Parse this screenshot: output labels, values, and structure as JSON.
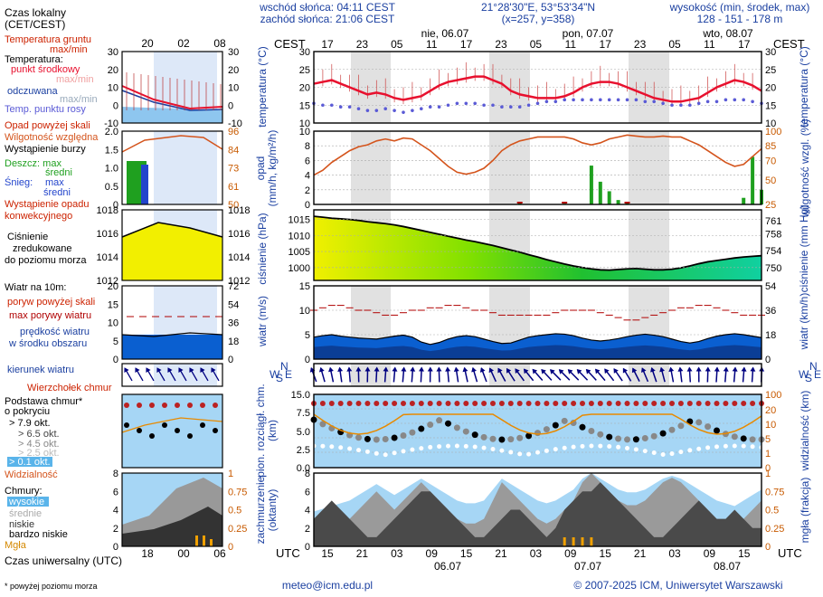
{
  "header": {
    "sunrise": "wschód słońca: 04:11 CEST",
    "sunset": "zachód słońca: 21:06 CEST",
    "coords": "21°28'30\"E, 53°53'34\"N",
    "grid": "(x=257, y=358)",
    "elev_title": "wysokość (min, środek, max)",
    "elev_values": "128 - 151 - 178 m"
  },
  "footer": {
    "email": "meteo@icm.edu.pl",
    "copyright": "© 2007-2025 ICM, Uniwersytet Warszawski",
    "note": "* powyżej poziomu morza"
  },
  "legend": {
    "local_time": [
      "Czas lokalny",
      "(CET/CEST)"
    ],
    "soil_temp": [
      "Temperatura gruntu",
      "max/min"
    ],
    "temp_title": "Temperatura:",
    "temp_mid": "punkt środkowy",
    "temp_mid_minmax": "max/min",
    "temp_felt": "odczuwana",
    "temp_felt_minmax": "max/min",
    "temp_dew": "Temp. punktu rosy",
    "precip_above": "Opad powyżej skali",
    "humidity": "Wilgotność względna",
    "storm": "Wystąpienie burzy",
    "rain_max": "Deszcz: max",
    "rain_mean": "średni",
    "snow_label": "Śnieg:",
    "snow_max": "max",
    "snow_mean": "średni",
    "precip_occ": [
      "Wystąpienie opadu",
      "konwekcyjnego"
    ],
    "pressure": [
      "Ciśnienie",
      "zredukowane",
      "do poziomu morza"
    ],
    "wind_title": "Wiatr na 10m:",
    "gust_above": "poryw powyżej skali",
    "gust_max": "max porywy wiatru",
    "wind_mean": [
      "prędkość wiatru",
      "w środku obszaru"
    ],
    "wind_dir": "kierunek wiatru",
    "cloud_top": "Wierzchołek chmur",
    "cloud_base": [
      "Podstawa chmur*",
      "o pokryciu"
    ],
    "cov": [
      "> 7.9 okt.",
      "> 6.5 okt.",
      "> 4.5 okt.",
      "> 2.5 okt.",
      "> 0.1 okt."
    ],
    "visibility": "Widzialność",
    "clouds_title": "Chmury:",
    "cl_high": "wysokie",
    "cl_mid": "średnie",
    "cl_low": "niskie",
    "cl_vlow": "bardzo niskie",
    "fog": "Mgła",
    "utc_time": "Czas uniwersalny (UTC)"
  },
  "axes": {
    "cest": "CEST",
    "utc": "UTC",
    "local_ticks": [
      "17",
      "23",
      "05",
      "11",
      "17",
      "23",
      "05",
      "11",
      "17",
      "23",
      "05",
      "11",
      "17"
    ],
    "utc_ticks": [
      "15",
      "21",
      "03",
      "09",
      "15",
      "21",
      "03",
      "09",
      "15",
      "21",
      "03",
      "09",
      "15"
    ],
    "day_labels": [
      "nie, 06.07",
      "pon, 07.07",
      "wto, 08.07"
    ],
    "utc_days": [
      "06.07",
      "07.07",
      "08.07"
    ],
    "legend_local_ticks": [
      "20",
      "02",
      "08"
    ],
    "legend_utc_ticks": [
      "18",
      "00",
      "06"
    ],
    "y_titles": {
      "temp": "temperatura (°C)",
      "precip": [
        "opad",
        "(mm/h, kg/m²/h)"
      ],
      "humidity": "wilgotność wzgl. (%)",
      "pressure": "ciśnienie (hPa)",
      "pressure_r": "ciśnienie (mm Hg)",
      "wind": "wiatr (m/s)",
      "wind_r": "wiatr (km/h)",
      "cloudbase": [
        "pion. rozciągł. chm.",
        "(km)"
      ],
      "vis": "widzialność (km)",
      "cloudcov": [
        "zachmurzenie",
        "(oktanty)"
      ],
      "fog": "mgła (frakcja)"
    },
    "temp_ticks": [
      "10",
      "15",
      "20",
      "25",
      "30"
    ],
    "temp_ticks_left": [
      "-10",
      "-5",
      "0",
      "5",
      "10",
      "15",
      "20",
      "25",
      "30"
    ],
    "precip_ticks": [
      "0",
      "2",
      "4",
      "6",
      "8",
      "10"
    ],
    "precip_ticks_left": [
      "0",
      "0.5",
      "1.0",
      "1.5",
      "2.0"
    ],
    "hum_ticks": [
      "25",
      "50",
      "70",
      "85",
      "96",
      "100"
    ],
    "hum_ticks_legend": [
      "50",
      "61",
      "73",
      "84",
      "96"
    ],
    "pres_ticks": [
      "1000",
      "1005",
      "1010",
      "1015"
    ],
    "pres_ticks_r": [
      "750",
      "754",
      "758",
      "761"
    ],
    "pres_ticks_legend": [
      "1012",
      "1014",
      "1016",
      "1018"
    ],
    "wind_ticks": [
      "0",
      "5",
      "10",
      "15"
    ],
    "wind_ticks_r": [
      "0",
      "18",
      "36",
      "54"
    ],
    "wind_ticks_legend": [
      "0",
      "5",
      "10",
      "15",
      "20"
    ],
    "wind_ticks_legend_r": [
      "0",
      "18",
      "36",
      "54",
      "72"
    ],
    "cb_ticks": [
      "0.0",
      "2.5",
      "5.0",
      "7.5",
      "15.0"
    ],
    "vis_ticks": [
      "0",
      "1",
      "5",
      "10",
      "20",
      "100"
    ],
    "cc_ticks": [
      "0",
      "2",
      "4",
      "6",
      "8"
    ],
    "fog_ticks": [
      "0",
      "0.25",
      "0.5",
      "0.75",
      "1"
    ],
    "wn_letters": [
      "N",
      "W",
      "E",
      "S"
    ]
  },
  "colors": {
    "temp": "#e8102e",
    "dew": "#5b5bd6",
    "humidity": "#d4541c",
    "rain": "#1fa01f",
    "snow": "#2244cc",
    "wind_mean": "#1f55d4",
    "gust": "#b00000",
    "night": "#c9c9c9",
    "plot_bg": "#ffffff",
    "cloudsky": "#a6d6f5",
    "cloud_text": "#000080"
  },
  "chart_data": [
    {
      "type": "line",
      "title": "temperatura",
      "ylim": [
        10,
        30
      ],
      "x_hours_utc_from": 13,
      "series": [
        {
          "name": "temperatura (punkt środkowy)",
          "values": [
            21,
            21.5,
            22,
            21,
            20,
            19,
            18,
            18.5,
            18,
            17,
            16.5,
            17,
            17.5,
            19,
            20.5,
            21.5,
            22,
            22.5,
            23,
            23,
            22,
            21,
            19,
            18,
            17.5,
            17,
            17,
            17,
            17.5,
            18.5,
            20,
            21,
            21.5,
            21.5,
            21,
            20,
            19,
            18,
            17,
            16.5,
            16,
            16,
            16.5,
            17,
            18.5,
            20,
            21,
            22,
            21.5,
            20.5,
            19
          ]
        },
        {
          "name": "temp. punktu rosy",
          "values": [
            15.5,
            15,
            15,
            14.5,
            14.5,
            14,
            13.5,
            13.5,
            14,
            13.5,
            13,
            13.5,
            14,
            14.5,
            14.5,
            15,
            15.5,
            15.5,
            15.5,
            15,
            15,
            14.5,
            14.5,
            14.5,
            15,
            15.5,
            16,
            16,
            16.5,
            16.5,
            16.5,
            16.5,
            16.5,
            16.5,
            16.5,
            16.5,
            16.5,
            16,
            16,
            15.5,
            15,
            15,
            15,
            15.5,
            16,
            16,
            16.5,
            16.5,
            16.5,
            16,
            15.5
          ]
        }
      ]
    },
    {
      "type": "line",
      "title": "wilgotność względna (%)",
      "ylim": [
        25,
        100
      ],
      "series": [
        {
          "name": "wilgotność",
          "values": [
            55,
            60,
            68,
            74,
            80,
            84,
            86,
            90,
            92,
            90,
            93,
            92,
            86,
            80,
            72,
            64,
            58,
            56,
            58,
            62,
            70,
            80,
            86,
            90,
            92,
            94,
            94,
            94,
            94,
            92,
            88,
            86,
            88,
            92,
            94,
            96,
            95,
            94,
            94,
            95,
            94,
            94,
            90,
            86,
            80,
            74,
            68,
            64,
            66,
            74,
            82
          ]
        }
      ]
    },
    {
      "type": "bar",
      "title": "opad (mm/h)",
      "ylim": [
        0,
        10
      ],
      "series": [
        {
          "name": "deszcz max",
          "values": [
            0,
            0,
            0,
            0,
            0,
            0,
            0,
            0,
            0,
            0,
            0,
            0,
            0,
            0,
            0,
            0,
            0,
            0,
            0,
            0,
            0,
            0,
            0,
            0.3,
            0,
            0,
            0,
            0,
            0.1,
            0,
            0,
            5.3,
            3.1,
            1.8,
            0.6,
            0.3,
            0,
            0,
            0,
            0,
            0,
            0,
            0,
            0,
            0,
            0,
            0,
            0,
            0.9,
            6.5,
            2.0
          ]
        }
      ]
    },
    {
      "type": "area",
      "title": "ciśnienie (hPa)",
      "ylim": [
        996,
        1018
      ],
      "series": [
        {
          "name": "ciśnienie",
          "values": [
            1016,
            1015.7,
            1015.4,
            1015.2,
            1015,
            1014.7,
            1014.3,
            1014,
            1013.7,
            1013.3,
            1012.8,
            1012.2,
            1011.6,
            1011,
            1010.4,
            1009.8,
            1009.2,
            1008.6,
            1008.1,
            1007.5,
            1006.9,
            1006.2,
            1005.5,
            1004.8,
            1004,
            1003.3,
            1002.5,
            1001.8,
            1001.1,
            1000.5,
            1000,
            999.6,
            999.3,
            999.2,
            999.4,
            999.6,
            999.7,
            999.5,
            999.3,
            999.3,
            999.5,
            999.9,
            1000.5,
            1001.2,
            1001.8,
            1002.2,
            1002.6,
            1003,
            1003.3,
            1003.5,
            1003.7
          ]
        }
      ]
    },
    {
      "type": "line",
      "title": "wiatr (m/s)",
      "ylim": [
        0,
        15
      ],
      "series": [
        {
          "name": "prędkość wiatru",
          "values": [
            4.5,
            4.8,
            5,
            4.7,
            4.5,
            4.3,
            4.2,
            4.1,
            4.4,
            4.7,
            4.9,
            4.5,
            3.5,
            3.0,
            3.4,
            4.1,
            4.6,
            4.8,
            4.6,
            4.1,
            3.6,
            3.2,
            3.3,
            3.9,
            4.5,
            4.8,
            5.0,
            5.2,
            5.1,
            4.8,
            4.3,
            3.9,
            3.7,
            3.9,
            4.2,
            4.6,
            4.9,
            5.1,
            4.9,
            4.6,
            4.1,
            3.6,
            3.3,
            3.6,
            4.2,
            4.7,
            5.0,
            5.2,
            5.0,
            4.7,
            4.4
          ]
        },
        {
          "name": "max porywy",
          "values": [
            10,
            10.5,
            11,
            11,
            10.5,
            10,
            10,
            9.5,
            9,
            9,
            9.5,
            10,
            10,
            10.5,
            10.5,
            11,
            11,
            10.5,
            10,
            10,
            9.5,
            9,
            9,
            9,
            9,
            9,
            9,
            9.5,
            10,
            10,
            10,
            10,
            9.5,
            9,
            8.5,
            8,
            8,
            8.5,
            9,
            9.5,
            10,
            10.5,
            10.5,
            11,
            11,
            10.5,
            10,
            9.5,
            9,
            9,
            9
          ]
        }
      ]
    },
    {
      "type": "area",
      "title": "zachmurzenie (oktanty)",
      "ylim": [
        0,
        8
      ],
      "series": [
        {
          "name": "niskie",
          "values": [
            3,
            4,
            5,
            4,
            3,
            2,
            1,
            1,
            2,
            3,
            4,
            5,
            6,
            6,
            5,
            4,
            3,
            2,
            1,
            1,
            2,
            3,
            4,
            4,
            3,
            2,
            1,
            2,
            4,
            5,
            6,
            6,
            7,
            6,
            5,
            4,
            3,
            2,
            1,
            1,
            2,
            3,
            4,
            5,
            4,
            3,
            3,
            4,
            3,
            2,
            2
          ]
        },
        {
          "name": "wysokie",
          "values": [
            1,
            1.5,
            2,
            2.5,
            3,
            4,
            5,
            6,
            5,
            4,
            5,
            6,
            7,
            6,
            5,
            4,
            3,
            2.5,
            2.5,
            3,
            5,
            7,
            6,
            5,
            4,
            3,
            2.5,
            3,
            4,
            5,
            7,
            8,
            7,
            6,
            5,
            4.5,
            4.5,
            5,
            6,
            7,
            7.5,
            7,
            6,
            5,
            4,
            3,
            2.5,
            2,
            3,
            4,
            5
          ]
        }
      ]
    }
  ]
}
